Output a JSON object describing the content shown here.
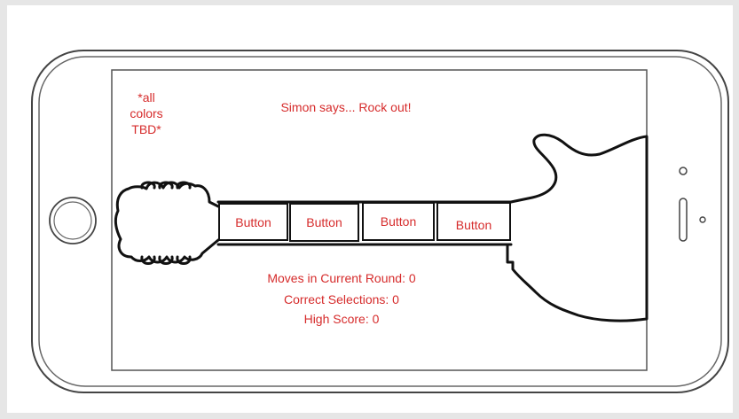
{
  "app": {
    "note_lines": [
      "*all",
      "colors",
      "TBD*"
    ],
    "title": "Simon says... Rock out!"
  },
  "fret_buttons": [
    {
      "label": "Button"
    },
    {
      "label": "Button"
    },
    {
      "label": "Button"
    },
    {
      "label": "Button"
    }
  ],
  "stats": {
    "moves": "Moves in Current Round: 0",
    "correct": "Correct Selections: 0",
    "high_score": "High Score: 0"
  },
  "colors": {
    "text_accent": "#d62b2b",
    "outline": "#111111",
    "frame": "#e6e6e6"
  },
  "icons": [
    "home-button-icon",
    "camera-icon",
    "speaker-icon",
    "sensor-icon"
  ]
}
